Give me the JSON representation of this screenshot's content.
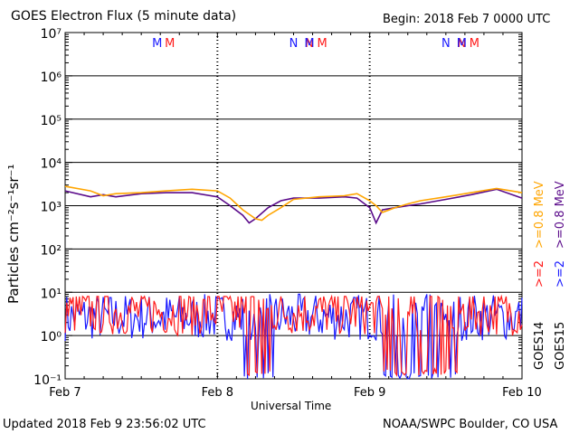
{
  "chart_data": {
    "type": "line",
    "title": "GOES Electron Flux (5 minute data)",
    "begin": "Begin: 2018 Feb 7 0000 UTC",
    "xlabel": "Universal Time",
    "ylabel": "Particles cm⁻²s⁻¹sr⁻¹",
    "x_ticks": [
      "Feb 7",
      "Feb 8",
      "Feb 9",
      "Feb 10"
    ],
    "x_range": [
      "2018-02-07T00:00",
      "2018-02-10T00:00"
    ],
    "y_scale": "log",
    "y_range": [
      0.1,
      10000000
    ],
    "y_ticks": [
      "10⁻¹",
      "10⁰",
      "10¹",
      "10²",
      "10³",
      "10⁴",
      "10⁵",
      "10⁶",
      "10⁷"
    ],
    "threshold": 1000,
    "grid": true,
    "markers": {
      "day1": [
        {
          "label": "M",
          "color": "#1a1aff"
        },
        {
          "label": "M",
          "color": "#ff1a1a"
        },
        {
          "label": "N",
          "color": "#1a1aff"
        },
        {
          "label": "N",
          "color": "#ff1a1a"
        }
      ],
      "day2": [
        {
          "label": "M",
          "color": "#1a1aff"
        },
        {
          "label": "M",
          "color": "#ff1a1a"
        },
        {
          "label": "N",
          "color": "#1a1aff"
        },
        {
          "label": "N",
          "color": "#ff1a1a"
        }
      ],
      "day3": [
        {
          "label": "M",
          "color": "#1a1aff"
        },
        {
          "label": "M",
          "color": "#ff1a1a"
        },
        {
          "label": "N",
          "color": "#1a1aff"
        },
        {
          "label": "N",
          "color": "#ff1a1a"
        }
      ]
    },
    "series": [
      {
        "name": ">=0.8 MeV",
        "satellite": "GOES14",
        "color": "#ffa500",
        "x_hours": [
          0,
          4,
          6,
          8,
          12,
          16,
          20,
          24,
          26,
          28,
          30,
          31,
          32,
          34,
          36,
          40,
          44,
          46,
          48,
          49,
          50,
          52,
          54,
          56,
          60,
          64,
          68,
          72
        ],
        "values": [
          2800,
          2200,
          1700,
          1900,
          2000,
          2200,
          2400,
          2200,
          1500,
          800,
          500,
          460,
          600,
          900,
          1400,
          1600,
          1700,
          1900,
          1300,
          1000,
          700,
          900,
          1100,
          1300,
          1600,
          2000,
          2500,
          2000
        ]
      },
      {
        "name": ">=0.8 MeV",
        "satellite": "GOES15",
        "color": "#5a0a8a",
        "x_hours": [
          0,
          4,
          6,
          8,
          12,
          16,
          20,
          24,
          26,
          28,
          29,
          30,
          32,
          34,
          36,
          40,
          44,
          46,
          48,
          49,
          50,
          52,
          54,
          56,
          60,
          64,
          68,
          72
        ],
        "values": [
          2200,
          1600,
          1800,
          1600,
          1900,
          2000,
          2000,
          1600,
          1000,
          600,
          400,
          500,
          900,
          1300,
          1500,
          1500,
          1600,
          1500,
          900,
          400,
          800,
          900,
          1000,
          1100,
          1400,
          1800,
          2400,
          1500
        ]
      },
      {
        "name": ">=2 MeV",
        "satellite": "GOES14",
        "color": "#ff1a1a",
        "range": [
          0.12,
          8
        ],
        "typical": 4
      },
      {
        "name": ">=2 MeV",
        "satellite": "GOES15",
        "color": "#1a1aff",
        "range": [
          0.1,
          9
        ],
        "typical": 3
      }
    ],
    "legend": {
      "goes14": "GOES14",
      "goes15": "GOES15",
      "red": ">=2",
      "orange": ">=0.8 MeV",
      "blue": ">=2",
      "purple": ">=0.8 MeV"
    }
  },
  "footer": {
    "updated": "Updated 2018 Feb  9 23:56:02 UTC",
    "credit": "NOAA/SWPC Boulder, CO USA"
  }
}
